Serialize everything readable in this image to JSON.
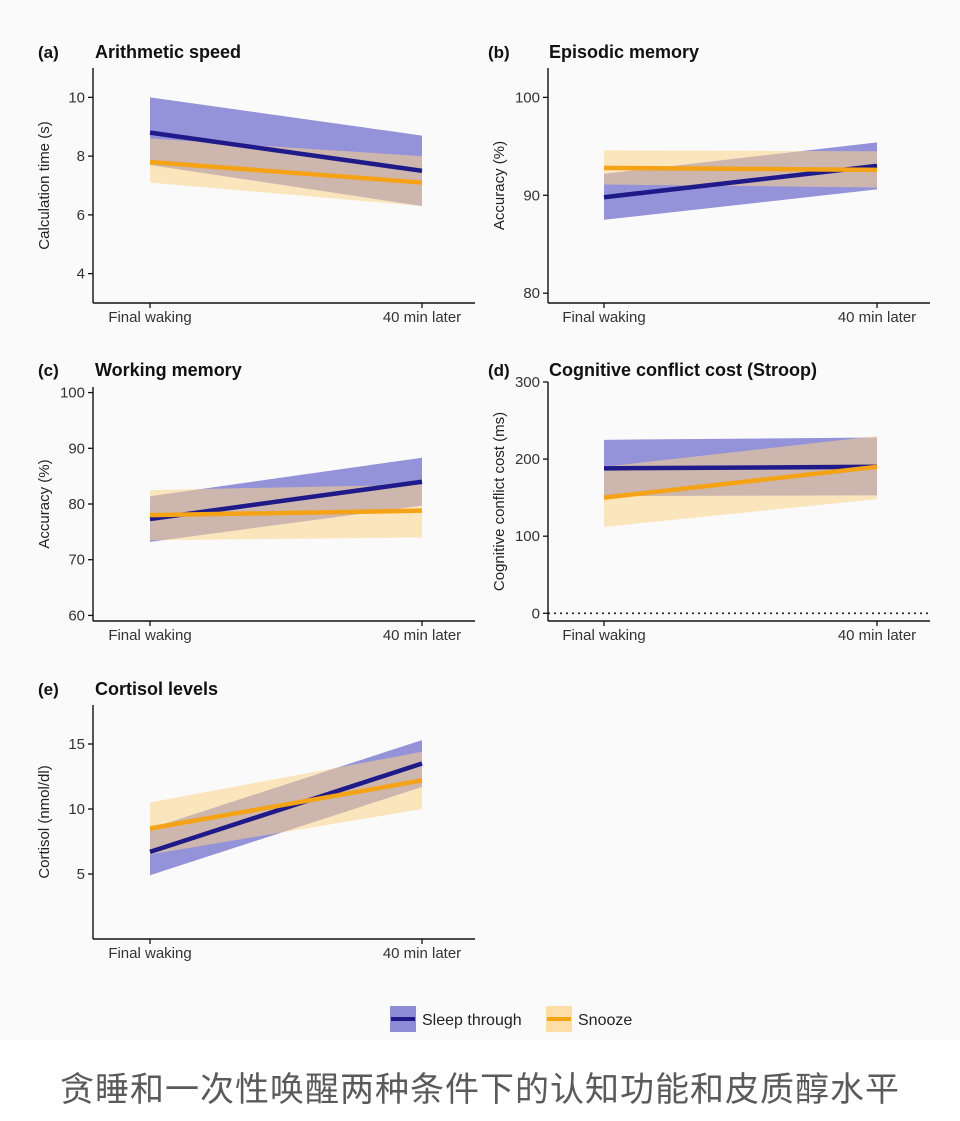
{
  "caption": "贪睡和一次性唤醒两种条件下的认知功能和皮质醇水平",
  "colors": {
    "sleep_line": "#1f1a8a",
    "sleep_band": "#7b78cf",
    "snooze_line": "#f4a316",
    "snooze_band": "#fcd48a",
    "overlap_line": "#6b3b55"
  },
  "legend": [
    {
      "name": "Sleep through",
      "color": "#1f1a8a",
      "band": "#7b78cf"
    },
    {
      "name": "Snooze",
      "color": "#f4a316",
      "band": "#fcd48a"
    }
  ],
  "chart_data": [
    {
      "type": "line",
      "panel": "(a)",
      "title": "Arithmetic speed",
      "ylabel": "Calculation time (s)",
      "xlabel": "",
      "categories": [
        "Final waking",
        "40 min later"
      ],
      "ylim": [
        3,
        11
      ],
      "yticks": [
        4,
        6,
        8,
        10
      ],
      "grid": false,
      "series": [
        {
          "name": "Sleep through",
          "values": [
            8.8,
            7.5
          ],
          "lower": [
            7.7,
            6.3
          ],
          "upper": [
            10.0,
            8.7
          ]
        },
        {
          "name": "Snooze",
          "values": [
            7.8,
            7.1
          ],
          "lower": [
            7.1,
            6.3
          ],
          "upper": [
            8.6,
            8.0
          ]
        }
      ]
    },
    {
      "type": "line",
      "panel": "(b)",
      "title": "Episodic memory",
      "ylabel": "Accuracy (%)",
      "xlabel": "",
      "categories": [
        "Final waking",
        "40 min later"
      ],
      "ylim": [
        79,
        103
      ],
      "yticks": [
        80,
        90,
        100
      ],
      "grid": false,
      "series": [
        {
          "name": "Sleep through",
          "values": [
            89.8,
            93.0
          ],
          "lower": [
            87.5,
            90.6
          ],
          "upper": [
            92.2,
            95.4
          ]
        },
        {
          "name": "Snooze",
          "values": [
            92.8,
            92.6
          ],
          "lower": [
            91.1,
            90.8
          ],
          "upper": [
            94.6,
            94.5
          ]
        }
      ]
    },
    {
      "type": "line",
      "panel": "(c)",
      "title": "Working memory",
      "ylabel": "Accuracy (%)",
      "xlabel": "",
      "categories": [
        "Final waking",
        "40 min later"
      ],
      "ylim": [
        59,
        101
      ],
      "yticks": [
        60,
        70,
        80,
        90,
        100
      ],
      "grid": false,
      "series": [
        {
          "name": "Sleep through",
          "values": [
            77.3,
            84.0
          ],
          "lower": [
            73.2,
            79.7
          ],
          "upper": [
            81.4,
            88.3
          ]
        },
        {
          "name": "Snooze",
          "values": [
            78.0,
            78.8
          ],
          "lower": [
            73.5,
            74.0
          ],
          "upper": [
            82.5,
            83.5
          ]
        }
      ]
    },
    {
      "type": "line",
      "panel": "(d)",
      "title": "Cognitive conflict cost (Stroop)",
      "ylabel": "Cognitive conflict cost (ms)",
      "xlabel": "",
      "categories": [
        "Final waking",
        "40 min later"
      ],
      "ylim": [
        -10,
        300
      ],
      "yticks": [
        0,
        100,
        200,
        300
      ],
      "reference_line": 0,
      "grid": false,
      "series": [
        {
          "name": "Sleep through",
          "values": [
            188,
            190
          ],
          "lower": [
            152,
            153
          ],
          "upper": [
            225,
            228
          ]
        },
        {
          "name": "Snooze",
          "values": [
            150,
            190
          ],
          "lower": [
            112,
            148
          ],
          "upper": [
            190,
            230
          ]
        }
      ]
    },
    {
      "type": "line",
      "panel": "(e)",
      "title": "Cortisol levels",
      "ylabel": "Cortisol (nmol/dl)",
      "xlabel": "",
      "categories": [
        "Final waking",
        "40 min later"
      ],
      "ylim": [
        0,
        18
      ],
      "yticks": [
        5,
        10,
        15
      ],
      "grid": false,
      "series": [
        {
          "name": "Sleep through",
          "values": [
            6.7,
            13.5
          ],
          "lower": [
            4.9,
            11.7
          ],
          "upper": [
            8.5,
            15.3
          ]
        },
        {
          "name": "Snooze",
          "values": [
            8.5,
            12.2
          ],
          "lower": [
            6.5,
            10.0
          ],
          "upper": [
            10.5,
            14.4
          ]
        }
      ]
    }
  ]
}
